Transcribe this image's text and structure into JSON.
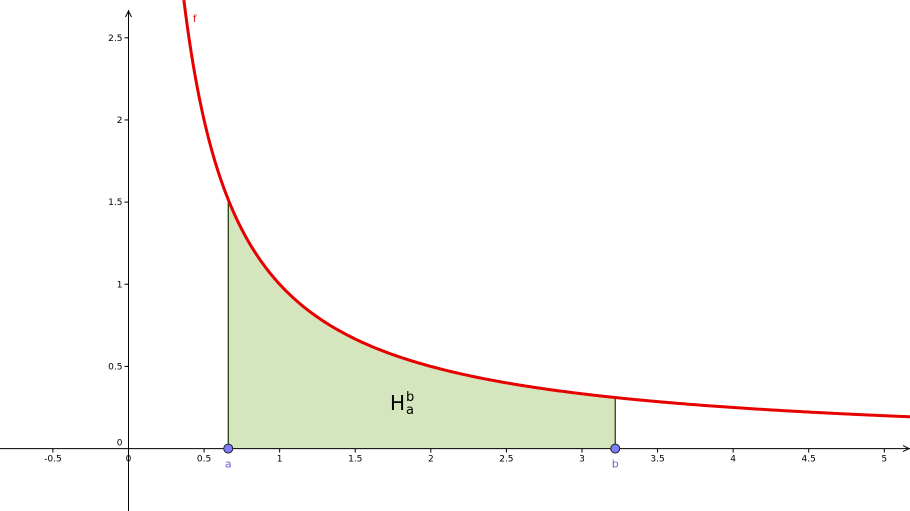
{
  "chart_data": {
    "type": "area",
    "function": {
      "name": "f",
      "formula": "1/x",
      "color": "#e60000"
    },
    "shaded_region": {
      "label_main": "H",
      "label_sub": "a",
      "label_sup": "b",
      "x_from": 0.66,
      "x_to": 3.22,
      "fill": "#d5e5bd"
    },
    "points": [
      {
        "name": "a",
        "x": 0.66,
        "y": 0
      },
      {
        "name": "b",
        "x": 3.22,
        "y": 0
      }
    ],
    "point_fill": "#7d7dff",
    "point_label_color": "#6666cc",
    "xlim": [
      -0.85,
      5.17
    ],
    "ylim": [
      -0.38,
      2.73
    ],
    "x_ticks": [
      {
        "v": -0.5,
        "label": "-0.5"
      },
      {
        "v": 0,
        "label": "0"
      },
      {
        "v": 0.5,
        "label": "0.5"
      },
      {
        "v": 1,
        "label": "1"
      },
      {
        "v": 1.5,
        "label": "1.5"
      },
      {
        "v": 2,
        "label": "2"
      },
      {
        "v": 2.5,
        "label": "2.5"
      },
      {
        "v": 3,
        "label": "3"
      },
      {
        "v": 3.5,
        "label": "3.5"
      },
      {
        "v": 4,
        "label": "4"
      },
      {
        "v": 4.5,
        "label": "4.5"
      },
      {
        "v": 5,
        "label": "5"
      }
    ],
    "y_ticks": [
      {
        "v": 0.5,
        "label": "0.5"
      },
      {
        "v": 1,
        "label": "1"
      },
      {
        "v": 1.5,
        "label": "1.5"
      },
      {
        "v": 2,
        "label": "2"
      },
      {
        "v": 2.5,
        "label": "2.5"
      }
    ],
    "grid": false
  }
}
